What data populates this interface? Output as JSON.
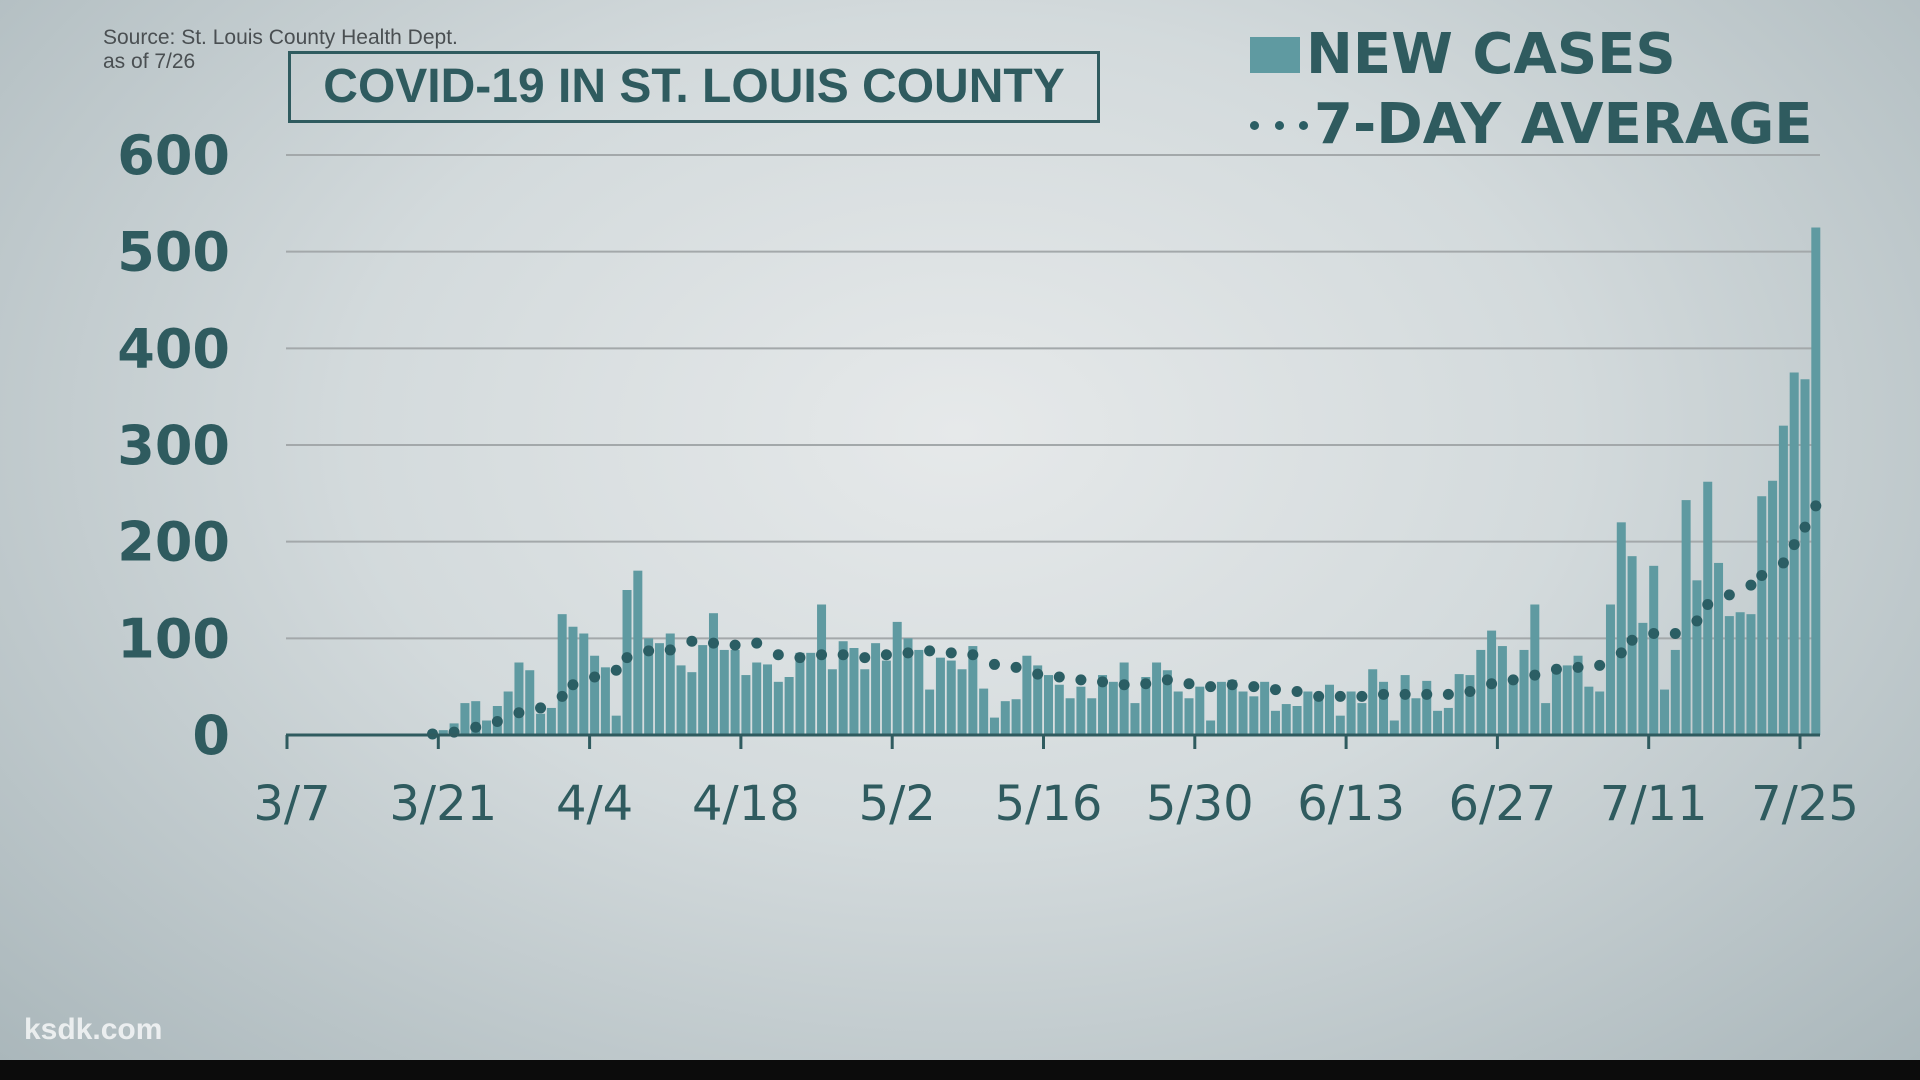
{
  "watermark": "ksdk.com",
  "source": {
    "line1": "Source: St. Louis County Health Dept.",
    "line2": "as of 7/26"
  },
  "chart_data": {
    "type": "bar",
    "title": "COVID-19 IN ST. LOUIS COUNTY",
    "legend": [
      "NEW CASES",
      "7-DAY AVERAGE"
    ],
    "legend_placement": "top-right",
    "xlabel": "",
    "ylabel": "",
    "ylim": [
      0,
      600
    ],
    "yticks": [
      0,
      100,
      200,
      300,
      400,
      500,
      600
    ],
    "xticks": [
      {
        "label": "3/7",
        "day": 0
      },
      {
        "label": "3/21",
        "day": 14
      },
      {
        "label": "4/4",
        "day": 28
      },
      {
        "label": "4/18",
        "day": 42
      },
      {
        "label": "5/2",
        "day": 56
      },
      {
        "label": "5/16",
        "day": 70
      },
      {
        "label": "5/30",
        "day": 84
      },
      {
        "label": "6/13",
        "day": 98
      },
      {
        "label": "6/27",
        "day": 112
      },
      {
        "label": "7/11",
        "day": 126
      },
      {
        "label": "7/25",
        "day": 140
      }
    ],
    "start_date": "3/7",
    "grid": true,
    "colors": {
      "bars": "#5f9aa1",
      "average": "#2b5e64",
      "text": "#2f5b5f",
      "grid": "#a3a8aa"
    },
    "new_cases": [
      0,
      0,
      0,
      0,
      0,
      0,
      0,
      0,
      0,
      0,
      0,
      0,
      0,
      5,
      5,
      12,
      33,
      35,
      15,
      30,
      45,
      75,
      67,
      22,
      28,
      125,
      112,
      105,
      82,
      70,
      20,
      150,
      170,
      100,
      95,
      105,
      72,
      65,
      93,
      126,
      88,
      88,
      62,
      75,
      73,
      55,
      60,
      85,
      85,
      135,
      68,
      97,
      90,
      68,
      95,
      77,
      117,
      100,
      88,
      47,
      80,
      77,
      68,
      92,
      48,
      18,
      35,
      37,
      82,
      72,
      62,
      52,
      38,
      50,
      38,
      62,
      55,
      75,
      33,
      60,
      75,
      67,
      45,
      38,
      50,
      15,
      55,
      57,
      45,
      40,
      55,
      25,
      32,
      30,
      45,
      40,
      52,
      20,
      45,
      33,
      68,
      55,
      15,
      62,
      38,
      56,
      25,
      28,
      63,
      62,
      88,
      108,
      92,
      60,
      88,
      135,
      33,
      70,
      72,
      82,
      50,
      45,
      135,
      220,
      185,
      116,
      175,
      47,
      88,
      243,
      160,
      262,
      178,
      123,
      127,
      125,
      247,
      263,
      320,
      375,
      368,
      525
    ],
    "seven_day_average": [
      [
        13,
        1
      ],
      [
        15,
        3
      ],
      [
        17,
        8
      ],
      [
        19,
        14
      ],
      [
        21,
        23
      ],
      [
        23,
        28
      ],
      [
        25,
        40
      ],
      [
        26,
        52
      ],
      [
        28,
        60
      ],
      [
        30,
        67
      ],
      [
        31,
        80
      ],
      [
        33,
        87
      ],
      [
        35,
        88
      ],
      [
        37,
        97
      ],
      [
        39,
        95
      ],
      [
        41,
        93
      ],
      [
        43,
        95
      ],
      [
        45,
        83
      ],
      [
        47,
        80
      ],
      [
        49,
        83
      ],
      [
        51,
        83
      ],
      [
        53,
        80
      ],
      [
        55,
        83
      ],
      [
        57,
        85
      ],
      [
        59,
        87
      ],
      [
        61,
        85
      ],
      [
        63,
        83
      ],
      [
        65,
        73
      ],
      [
        67,
        70
      ],
      [
        69,
        63
      ],
      [
        71,
        60
      ],
      [
        73,
        57
      ],
      [
        75,
        55
      ],
      [
        77,
        52
      ],
      [
        79,
        53
      ],
      [
        81,
        57
      ],
      [
        83,
        53
      ],
      [
        85,
        50
      ],
      [
        87,
        52
      ],
      [
        89,
        50
      ],
      [
        91,
        47
      ],
      [
        93,
        45
      ],
      [
        95,
        40
      ],
      [
        97,
        40
      ],
      [
        99,
        40
      ],
      [
        101,
        42
      ],
      [
        103,
        42
      ],
      [
        105,
        42
      ],
      [
        107,
        42
      ],
      [
        109,
        45
      ],
      [
        111,
        53
      ],
      [
        113,
        57
      ],
      [
        115,
        62
      ],
      [
        117,
        68
      ],
      [
        119,
        70
      ],
      [
        121,
        72
      ],
      [
        123,
        85
      ],
      [
        124,
        98
      ],
      [
        126,
        105
      ],
      [
        128,
        105
      ],
      [
        130,
        118
      ],
      [
        131,
        135
      ],
      [
        133,
        145
      ],
      [
        135,
        155
      ],
      [
        136,
        165
      ],
      [
        138,
        178
      ],
      [
        139,
        197
      ],
      [
        140,
        215
      ],
      [
        141,
        237
      ]
    ]
  }
}
